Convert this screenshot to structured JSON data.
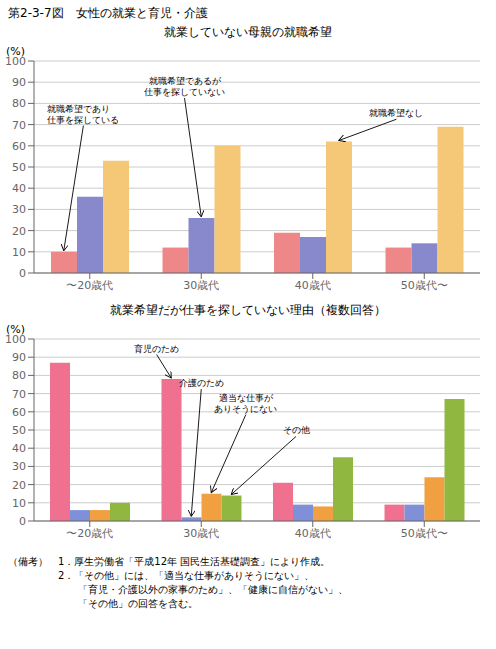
{
  "title": "第2-3-7図　女性の就業と育児・介護",
  "notes": [
    "（備考）　1．厚生労働省「平成12年 国民生活基礎調査」により作成。",
    "　　　　　2．「その他」には、「適当な仕事がありそうにない」、",
    "　　　　　　　「育児・介護以外の家事のため」、「健康に自信がない」、",
    "　　　　　　　「その他」の回答を含む。"
  ],
  "chart_data": [
    {
      "type": "bar",
      "title": "就業していない母親の就職希望",
      "y_label": "(%)",
      "categories": [
        "〜20歳代",
        "30歳代",
        "40歳代",
        "50歳代〜"
      ],
      "series": [
        {
          "name": "就職希望であり仕事を探している",
          "color": "#ee8888",
          "values": [
            10,
            12,
            19,
            12
          ]
        },
        {
          "name": "就職希望であるが仕事を探していない",
          "color": "#8888cc",
          "values": [
            36,
            26,
            17,
            14
          ]
        },
        {
          "name": "就職希望なし",
          "color": "#f5c878",
          "values": [
            53,
            60,
            62,
            69
          ]
        }
      ],
      "annotations": [
        "就職希望であり\n仕事を探している",
        "就職希望であるが\n仕事を探していない",
        "就職希望なし"
      ],
      "ylim": [
        0,
        100
      ],
      "yticks": [
        0,
        10,
        20,
        30,
        40,
        50,
        60,
        70,
        80,
        90,
        100
      ],
      "grid": true
    },
    {
      "type": "bar",
      "title": "就業希望だが仕事を探していない理由（複数回答）",
      "y_label": "(%)",
      "categories": [
        "〜20歳代",
        "30歳代",
        "40歳代",
        "50歳代〜"
      ],
      "series": [
        {
          "name": "育児のため",
          "color": "#f07090",
          "values": [
            87,
            78,
            21,
            9
          ]
        },
        {
          "name": "介護のため",
          "color": "#8090d8",
          "values": [
            6,
            2,
            9,
            9
          ]
        },
        {
          "name": "適当な仕事がありそうにない",
          "color": "#f0a040",
          "values": [
            6,
            15,
            8,
            24
          ]
        },
        {
          "name": "その他",
          "color": "#90b840",
          "values": [
            10,
            14,
            35,
            67
          ]
        }
      ],
      "annotations": [
        "育児のため",
        "介護のため",
        "適当な仕事が\nありそうにない",
        "その他"
      ],
      "ylim": [
        0,
        100
      ],
      "yticks": [
        0,
        10,
        20,
        30,
        40,
        50,
        60,
        70,
        80,
        90,
        100
      ],
      "grid": true
    }
  ]
}
